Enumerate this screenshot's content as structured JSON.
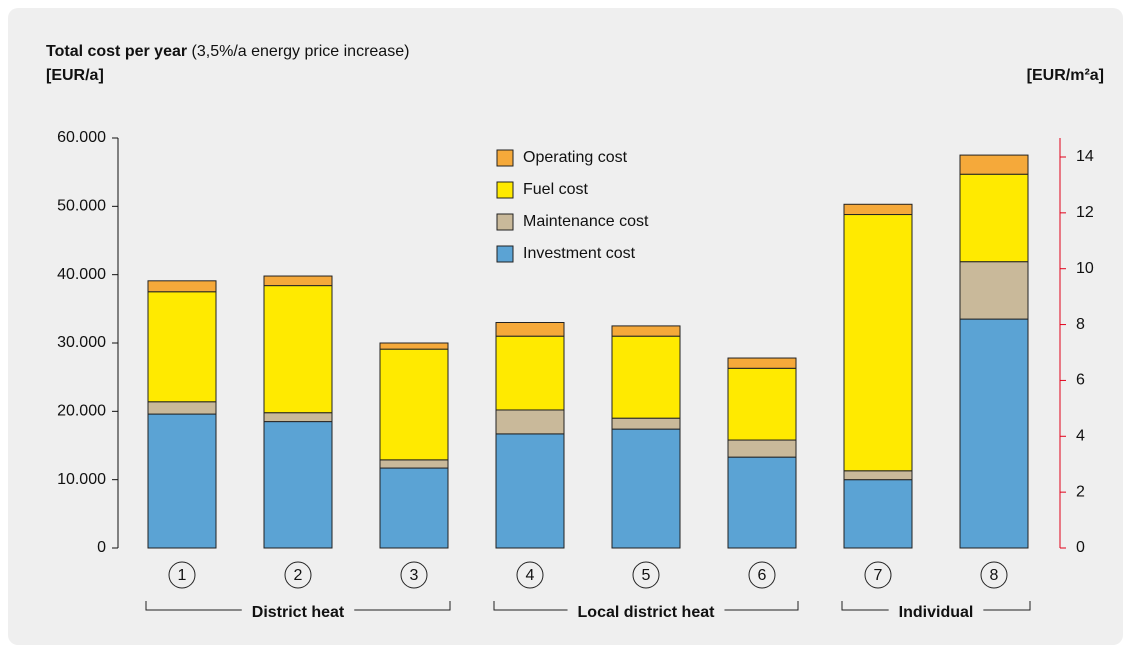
{
  "chart_data": {
    "type": "stacked_bar",
    "title": "Total cost per year",
    "subtitle": "(3,5%/a energy price increase)",
    "ylabel": "[EUR/a]",
    "y2label": "[EUR/m²a]",
    "categories": [
      "1",
      "2",
      "3",
      "4",
      "5",
      "6",
      "7",
      "8"
    ],
    "groups": [
      "District heat",
      "Local district heat",
      "Individual"
    ],
    "series": [
      {
        "name": "Investment cost",
        "color": "#5ba3d4",
        "values": [
          19600,
          18500,
          11700,
          16700,
          17400,
          13300,
          10000,
          33500
        ]
      },
      {
        "name": "Maintenance cost",
        "color": "#c9b99a",
        "values": [
          1800,
          1300,
          1200,
          3500,
          1600,
          2500,
          1300,
          8400
        ]
      },
      {
        "name": "Fuel cost",
        "color": "#ffea00",
        "values": [
          16100,
          18600,
          16200,
          10800,
          12000,
          10500,
          37500,
          12800
        ]
      },
      {
        "name": "Operating cost",
        "color": "#f5a93a",
        "values": [
          1600,
          1400,
          900,
          2000,
          1500,
          1500,
          1500,
          2800
        ]
      }
    ],
    "ylim": [
      0,
      60000
    ],
    "yticks": [
      0,
      {
        "value": 10000,
        "label": "10.000"
      },
      {
        "value": 20000,
        "label": "20.000"
      },
      {
        "value": 30000,
        "label": "30.000"
      },
      {
        "value": 40000,
        "label": "40.000"
      },
      {
        "value": 50000,
        "label": "50.000"
      },
      {
        "value": 60000,
        "label": "60.000"
      }
    ],
    "y2lim": [
      0,
      14.68
    ],
    "y2ticks": [
      0,
      2,
      4,
      6,
      8,
      10,
      12,
      14
    ],
    "y2color": "#e2001a",
    "grid": false
  }
}
